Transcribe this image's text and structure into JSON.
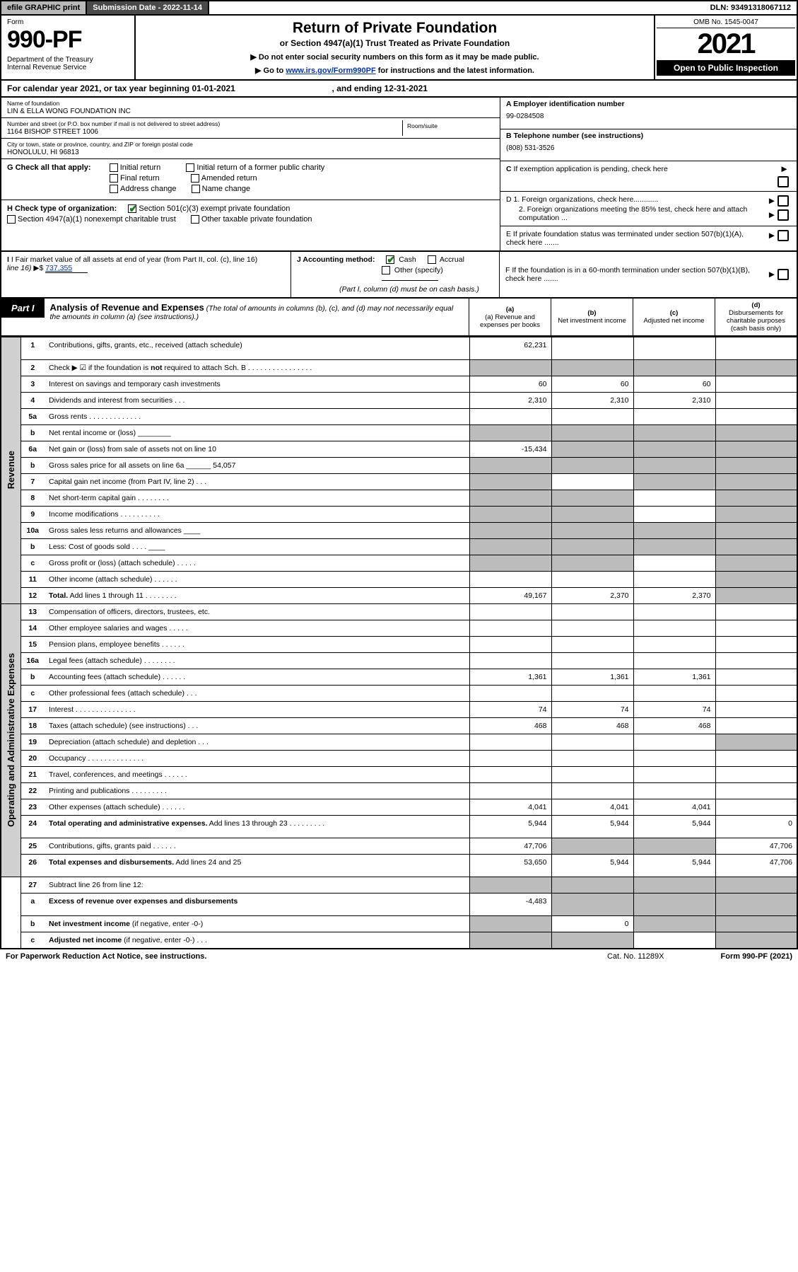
{
  "topbar": {
    "efile": "efile GRAPHIC print",
    "subdate_label": "Submission Date - ",
    "subdate": "2022-11-14",
    "dln_label": "DLN: ",
    "dln": "93491318067112"
  },
  "header": {
    "form_label": "Form",
    "form_no": "990-PF",
    "dept": "Department of the Treasury\nInternal Revenue Service",
    "title": "Return of Private Foundation",
    "subtitle": "or Section 4947(a)(1) Trust Treated as Private Foundation",
    "note1": "▶ Do not enter social security numbers on this form as it may be made public.",
    "note2_pre": "▶ Go to ",
    "note2_link": "www.irs.gov/Form990PF",
    "note2_post": " for instructions and the latest information.",
    "omb": "OMB No. 1545-0047",
    "year": "2021",
    "open": "Open to Public Inspection"
  },
  "cal": {
    "text_pre": "For calendar year 2021, or tax year beginning ",
    "begin": "01-01-2021",
    "text_mid": " , and ending ",
    "end": "12-31-2021"
  },
  "id": {
    "name_lbl": "Name of foundation",
    "name": "LIN & ELLA WONG FOUNDATION INC",
    "addr_lbl": "Number and street (or P.O. box number if mail is not delivered to street address)",
    "addr": "1164 BISHOP STREET 1006",
    "room_lbl": "Room/suite",
    "city_lbl": "City or town, state or province, country, and ZIP or foreign postal code",
    "city": "HONOLULU, HI  96813",
    "ein_lbl": "A Employer identification number",
    "ein": "99-0284508",
    "tel_lbl": "B Telephone number (see instructions)",
    "tel": "(808) 531-3526",
    "c_lbl": "C If exemption application is pending, check here"
  },
  "g": {
    "label": "G Check all that apply:",
    "opts": [
      "Initial return",
      "Final return",
      "Address change",
      "Initial return of a former public charity",
      "Amended return",
      "Name change"
    ]
  },
  "h": {
    "label": "H Check type of organization:",
    "opt1": "Section 501(c)(3) exempt private foundation",
    "opt2": "Section 4947(a)(1) nonexempt charitable trust",
    "opt3": "Other taxable private foundation"
  },
  "i": {
    "label": "I Fair market value of all assets at end of year (from Part II, col. (c), line 16)",
    "arrow": "▶$",
    "val": "737,355"
  },
  "j": {
    "label": "J Accounting method:",
    "cash": "Cash",
    "accrual": "Accrual",
    "other": "Other (specify)",
    "note": "(Part I, column (d) must be on cash basis.)"
  },
  "d": {
    "d1": "D 1. Foreign organizations, check here............",
    "d2": "2. Foreign organizations meeting the 85% test, check here and attach computation ..."
  },
  "e": {
    "lbl": "E  If private foundation status was terminated under section 507(b)(1)(A), check here ......."
  },
  "f": {
    "lbl": "F  If the foundation is in a 60-month termination under section 507(b)(1)(B), check here ......."
  },
  "part1": {
    "label": "Part I",
    "title": "Analysis of Revenue and Expenses",
    "note": "(The total of amounts in columns (b), (c), and (d) may not necessarily equal the amounts in column (a) (see instructions).)",
    "cols": {
      "a": "(a) Revenue and expenses per books",
      "b": "(b) Net investment income",
      "c": "(c) Adjusted net income",
      "d": "(d) Disbursements for charitable purposes (cash basis only)"
    }
  },
  "sections": {
    "rev": "Revenue",
    "exp": "Operating and Administrative Expenses"
  },
  "rows": [
    {
      "n": "1",
      "d": "Contributions, gifts, grants, etc., received (attach schedule)",
      "a": "62,231",
      "b": "",
      "c": "",
      "dv": "",
      "ds": true,
      "tall": true
    },
    {
      "n": "2",
      "d": "Check ▶ ☑ if the foundation is <b>not</b> required to attach Sch. B  . . . . . . . . . . . . . . . .",
      "a": "_s",
      "b": "_s",
      "c": "_s",
      "dv": "_s"
    },
    {
      "n": "3",
      "d": "Interest on savings and temporary cash investments",
      "a": "60",
      "b": "60",
      "c": "60",
      "dv": ""
    },
    {
      "n": "4",
      "d": "Dividends and interest from securities    .  .  .",
      "a": "2,310",
      "b": "2,310",
      "c": "2,310",
      "dv": ""
    },
    {
      "n": "5a",
      "d": "Gross rents     . . . . . . . . . . . . .",
      "a": "",
      "b": "",
      "c": "",
      "dv": ""
    },
    {
      "n": "b",
      "d": "Net rental income or (loss) ________",
      "a": "_s",
      "b": "_s",
      "c": "_s",
      "dv": "_s"
    },
    {
      "n": "6a",
      "d": "Net gain or (loss) from sale of assets not on line 10",
      "a": "-15,434",
      "b": "_s",
      "c": "_s",
      "dv": "_s"
    },
    {
      "n": "b",
      "d": "Gross sales price for all assets on line 6a ______ 54,057",
      "a": "_s",
      "b": "_s",
      "c": "_s",
      "dv": "_s"
    },
    {
      "n": "7",
      "d": "Capital gain net income (from Part IV, line 2)   .  .  .",
      "a": "_s",
      "b": "",
      "c": "_s",
      "dv": "_s"
    },
    {
      "n": "8",
      "d": "Net short-term capital gain  . . . . . . . .",
      "a": "_s",
      "b": "_s",
      "c": "",
      "dv": "_s"
    },
    {
      "n": "9",
      "d": "Income modifications . . . . . . . . . .",
      "a": "_s",
      "b": "_s",
      "c": "",
      "dv": "_s"
    },
    {
      "n": "10a",
      "d": "Gross sales less returns and allowances  ____",
      "a": "_s",
      "b": "_s",
      "c": "_s",
      "dv": "_s"
    },
    {
      "n": "b",
      "d": "Less: Cost of goods sold    .  .  .  .  ____",
      "a": "_s",
      "b": "_s",
      "c": "_s",
      "dv": "_s"
    },
    {
      "n": "c",
      "d": "Gross profit or (loss) (attach schedule)    .  .  .  .  .",
      "a": "_s",
      "b": "_s",
      "c": "",
      "dv": "_s"
    },
    {
      "n": "11",
      "d": "Other income (attach schedule)    .  .  .  .  .  .",
      "a": "",
      "b": "",
      "c": "",
      "dv": "_s"
    },
    {
      "n": "12",
      "d": "<b>Total.</b> Add lines 1 through 11   .  .  .  .  .  .  .  .",
      "a": "49,167",
      "b": "2,370",
      "c": "2,370",
      "dv": "_s"
    }
  ],
  "exp_rows": [
    {
      "n": "13",
      "d": "Compensation of officers, directors, trustees, etc.",
      "a": "",
      "b": "",
      "c": "",
      "dv": ""
    },
    {
      "n": "14",
      "d": "Other employee salaries and wages    .  .  .  .  .",
      "a": "",
      "b": "",
      "c": "",
      "dv": ""
    },
    {
      "n": "15",
      "d": "Pension plans, employee benefits  .  .  .  .  .  .",
      "a": "",
      "b": "",
      "c": "",
      "dv": ""
    },
    {
      "n": "16a",
      "d": "Legal fees (attach schedule) . . . . . . . .",
      "a": "",
      "b": "",
      "c": "",
      "dv": ""
    },
    {
      "n": "b",
      "d": "Accounting fees (attach schedule) . . . . . .",
      "a": "1,361",
      "b": "1,361",
      "c": "1,361",
      "dv": ""
    },
    {
      "n": "c",
      "d": "Other professional fees (attach schedule)   .  .  .",
      "a": "",
      "b": "",
      "c": "",
      "dv": ""
    },
    {
      "n": "17",
      "d": "Interest . . . . . . . . . . . . . . .",
      "a": "74",
      "b": "74",
      "c": "74",
      "dv": ""
    },
    {
      "n": "18",
      "d": "Taxes (attach schedule) (see instructions)      .  .  .",
      "a": "468",
      "b": "468",
      "c": "468",
      "dv": ""
    },
    {
      "n": "19",
      "d": "Depreciation (attach schedule) and depletion   .  .  .",
      "a": "",
      "b": "",
      "c": "",
      "dv": "_s"
    },
    {
      "n": "20",
      "d": "Occupancy . . . . . . . . . . . . . .",
      "a": "",
      "b": "",
      "c": "",
      "dv": ""
    },
    {
      "n": "21",
      "d": "Travel, conferences, and meetings . . . . . .",
      "a": "",
      "b": "",
      "c": "",
      "dv": ""
    },
    {
      "n": "22",
      "d": "Printing and publications . . . . . . . . .",
      "a": "",
      "b": "",
      "c": "",
      "dv": ""
    },
    {
      "n": "23",
      "d": "Other expenses (attach schedule) . . . . . .",
      "a": "4,041",
      "b": "4,041",
      "c": "4,041",
      "dv": ""
    },
    {
      "n": "24",
      "d": "<b>Total operating and administrative expenses.</b> Add lines 13 through 23  .  .  .  .  .  .  .  .  .",
      "a": "5,944",
      "b": "5,944",
      "c": "5,944",
      "dv": "0",
      "tall": true
    },
    {
      "n": "25",
      "d": "Contributions, gifts, grants paid    .  .  .  .  .  .",
      "a": "47,706",
      "b": "_s",
      "c": "_s",
      "dv": "47,706"
    },
    {
      "n": "26",
      "d": "<b>Total expenses and disbursements.</b> Add lines 24 and 25",
      "a": "53,650",
      "b": "5,944",
      "c": "5,944",
      "dv": "47,706",
      "tall": true
    }
  ],
  "bottom_rows": [
    {
      "n": "27",
      "d": "Subtract line 26 from line 12:",
      "a": "_s",
      "b": "_s",
      "c": "_s",
      "dv": "_s"
    },
    {
      "n": "a",
      "d": "<b>Excess of revenue over expenses and disbursements</b>",
      "a": "-4,483",
      "b": "_s",
      "c": "_s",
      "dv": "_s",
      "tall": true
    },
    {
      "n": "b",
      "d": "<b>Net investment income</b> (if negative, enter -0-)",
      "a": "_s",
      "b": "0",
      "c": "_s",
      "dv": "_s"
    },
    {
      "n": "c",
      "d": "<b>Adjusted net income</b> (if negative, enter -0-)   .  .  .",
      "a": "_s",
      "b": "_s",
      "c": "",
      "dv": "_s"
    }
  ],
  "footer": {
    "left": "For Paperwork Reduction Act Notice, see instructions.",
    "mid": "Cat. No. 11289X",
    "right_pre": "Form ",
    "right_form": "990-PF",
    "right_post": " (2021)"
  }
}
